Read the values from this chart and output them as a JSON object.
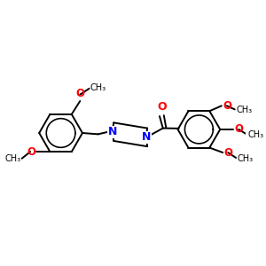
{
  "background_color": "#ffffff",
  "bond_color": "#000000",
  "nitrogen_color": "#0000ff",
  "oxygen_color": "#ff0000",
  "font_size": 7.5,
  "lw": 1.4,
  "fig_size": [
    3.0,
    3.0
  ],
  "dpi": 100,
  "xlim": [
    0,
    10
  ],
  "ylim": [
    1,
    9
  ]
}
